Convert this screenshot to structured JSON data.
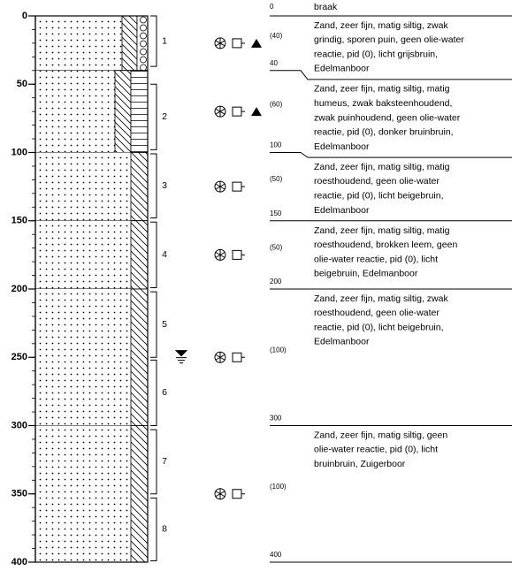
{
  "axis": {
    "ylim": [
      0,
      400
    ],
    "ticks": [
      0,
      50,
      100,
      150,
      200,
      250,
      300,
      350,
      400
    ],
    "minor_step": 10
  },
  "surface": "braak",
  "groundwater_depth": 247,
  "samples": [
    {
      "label": 1,
      "top": 0,
      "bottom": 37
    },
    {
      "label": 2,
      "top": 50,
      "bottom": 98
    },
    {
      "label": 3,
      "top": 101,
      "bottom": 148
    },
    {
      "label": 4,
      "top": 151,
      "bottom": 199
    },
    {
      "label": 5,
      "top": 202,
      "bottom": 250
    },
    {
      "label": 6,
      "top": 252,
      "bottom": 300
    },
    {
      "label": 7,
      "top": 303,
      "bottom": 350
    },
    {
      "label": 8,
      "top": 353,
      "bottom": 399
    }
  ],
  "layers": [
    {
      "top": 0,
      "bottom": 40,
      "thickness": "(40)",
      "triangle": true,
      "extra": "gravel",
      "lines": [
        "Zand, zeer fijn, matig siltig, zwak",
        "grindig, sporen puin, geen olie-water",
        "reactie, pid (0), licht grijsbruin,",
        "Edelmanboor"
      ]
    },
    {
      "top": 40,
      "bottom": 100,
      "thickness": "(60)",
      "triangle": true,
      "extra": "humus",
      "lines": [
        "Zand, zeer fijn, matig siltig, matig",
        "humeus, zwak baksteenhoudend,",
        "zwak puinhoudend, geen olie-water",
        "reactie, pid (0), donker bruinbruin,",
        "Edelmanboor"
      ]
    },
    {
      "top": 100,
      "bottom": 150,
      "thickness": "(50)",
      "triangle": false,
      "extra": "none",
      "lines": [
        "Zand, zeer fijn, matig siltig, matig",
        "roesthoudend, geen olie-water",
        "reactie, pid (0), licht beigebruin,",
        "Edelmanboor"
      ]
    },
    {
      "top": 150,
      "bottom": 200,
      "thickness": "(50)",
      "triangle": false,
      "extra": "none",
      "lines": [
        "Zand, zeer fijn, matig siltig, matig",
        "roesthoudend, brokken leem, geen",
        "olie-water reactie, pid (0), licht",
        "beigebruin, Edelmanboor"
      ]
    },
    {
      "top": 200,
      "bottom": 300,
      "thickness": "(100)",
      "triangle": false,
      "extra": "none",
      "lines": [
        "Zand, zeer fijn, matig siltig, zwak",
        "roesthoudend, geen olie-water",
        "reactie, pid (0), licht beigebruin,",
        "Edelmanboor"
      ]
    },
    {
      "top": 300,
      "bottom": 400,
      "thickness": "(100)",
      "triangle": false,
      "extra": "none",
      "lines": [
        "Zand, zeer fijn, matig siltig, geen",
        "olie-water reactie, pid (0), licht",
        "bruinbruin, Zuigerboor"
      ]
    }
  ]
}
